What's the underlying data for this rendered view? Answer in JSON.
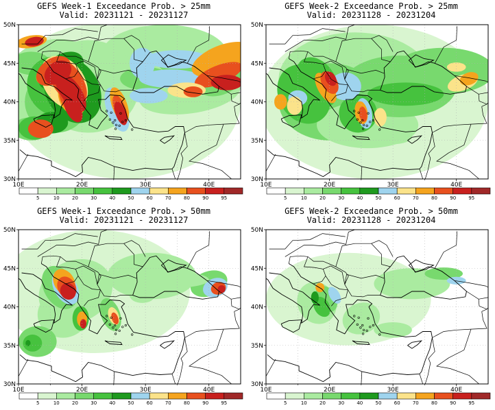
{
  "panels": [
    {
      "title": "GEFS Week-1 Exceedance Prob. > 25mm",
      "valid": "Valid: 20231121 - 20231127",
      "id": "week1-25mm"
    },
    {
      "title": "GEFS Week-2 Exceedance Prob. > 25mm",
      "valid": "Valid: 20231128 - 20231204",
      "id": "week2-25mm"
    },
    {
      "title": "GEFS Week-1 Exceedance Prob. > 50mm",
      "valid": "Valid: 20231121 - 20231127",
      "id": "week1-50mm"
    },
    {
      "title": "GEFS Week-2 Exceedance Prob. > 50mm",
      "valid": "Valid: 20231128 - 20231204",
      "id": "week2-50mm"
    }
  ],
  "map": {
    "lat_labels": [
      "50N",
      "45N",
      "40N",
      "35N",
      "30N"
    ],
    "lon_labels": [
      "10E",
      "20E",
      "30E",
      "40E"
    ],
    "lat_range": [
      30,
      50
    ],
    "lon_range": [
      10,
      45
    ]
  },
  "colorbar": {
    "labels": [
      "5",
      "10",
      "20",
      "30",
      "40",
      "50",
      "60",
      "70",
      "80",
      "90",
      "95"
    ],
    "colors": [
      "#ffffff",
      "#d9f5d0",
      "#aaeba0",
      "#78d96e",
      "#46c23e",
      "#1e9a1e",
      "#9fd4ee",
      "#fbe38a",
      "#f5a41e",
      "#e8501e",
      "#c8201e",
      "#a02828"
    ]
  }
}
